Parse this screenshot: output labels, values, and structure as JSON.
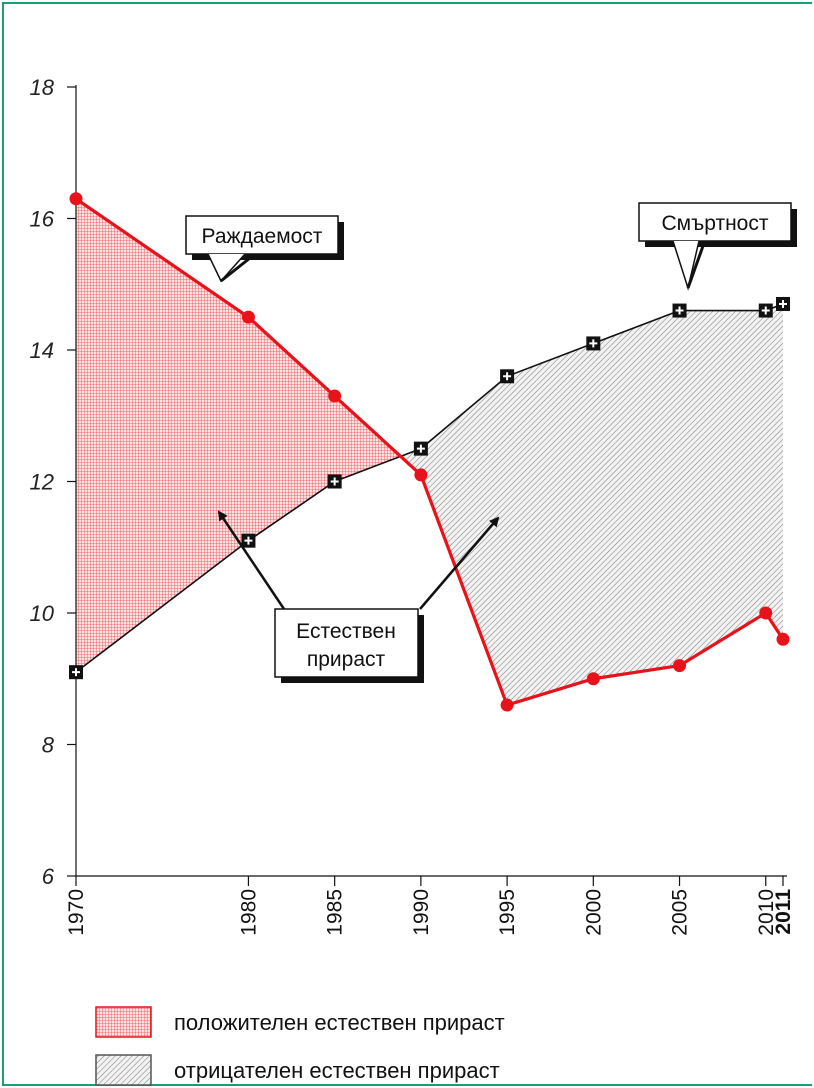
{
  "chart_data": {
    "type": "line",
    "x": [
      1970,
      1980,
      1985,
      1990,
      1995,
      2000,
      2005,
      2010,
      2011
    ],
    "x_tick_labels": [
      "1970",
      "1980",
      "1985",
      "1990",
      "1995",
      "2000",
      "2005",
      "2010",
      "2011"
    ],
    "ylim": [
      6,
      18
    ],
    "y_ticks": [
      6,
      8,
      10,
      12,
      14,
      16,
      18
    ],
    "series": [
      {
        "name": "Раждаемост",
        "color": "#e8121b",
        "marker": "circle",
        "values": [
          16.3,
          14.5,
          13.3,
          12.1,
          8.6,
          9.0,
          9.2,
          10.0,
          9.6
        ]
      },
      {
        "name": "Смъртност",
        "color": "#111111",
        "marker": "plus-square",
        "values": [
          9.1,
          11.1,
          12.0,
          12.5,
          13.6,
          14.1,
          14.6,
          14.6,
          14.7
        ]
      }
    ],
    "annotations": {
      "birth": "Раждаемост",
      "death": "Смъртност",
      "natural_line1": "Естествен",
      "natural_line2": "прираст"
    },
    "legend": [
      {
        "label": "положителен естествен прираст",
        "fill": "#e8121b"
      },
      {
        "label": "отрицателен естествен прираст",
        "fill": "#888888"
      }
    ],
    "grid": false
  }
}
